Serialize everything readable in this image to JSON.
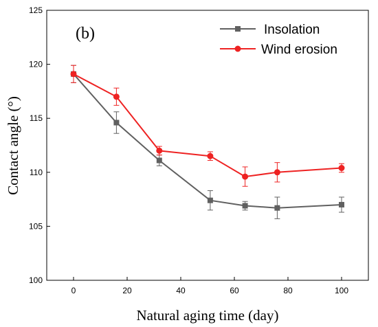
{
  "chart_data": {
    "type": "line",
    "panel_label": "(b)",
    "xlabel": "Natural aging time (day)",
    "ylabel": "Contact angle (°)",
    "xlim": [
      -10,
      110
    ],
    "ylim": [
      100,
      125
    ],
    "x_ticks": [
      0,
      20,
      40,
      60,
      80,
      100
    ],
    "y_ticks": [
      100,
      105,
      110,
      115,
      120,
      125
    ],
    "grid": false,
    "legend_position": "top-right",
    "series": [
      {
        "name": "Insolation",
        "color": "#606060",
        "marker": "square",
        "x": [
          0,
          16,
          32,
          51,
          64,
          76,
          100
        ],
        "y": [
          119.1,
          114.6,
          111.1,
          107.4,
          106.9,
          106.7,
          107.0
        ],
        "error": [
          0.8,
          1.0,
          0.5,
          0.9,
          0.4,
          1.0,
          0.7
        ]
      },
      {
        "name": "Wind erosion",
        "color": "#ee2222",
        "marker": "circle",
        "x": [
          0,
          16,
          32,
          51,
          64,
          76,
          100
        ],
        "y": [
          119.1,
          117.0,
          112.0,
          111.5,
          109.6,
          110.0,
          110.4
        ],
        "error": [
          0.8,
          0.8,
          0.4,
          0.4,
          0.9,
          0.9,
          0.4
        ]
      }
    ]
  }
}
